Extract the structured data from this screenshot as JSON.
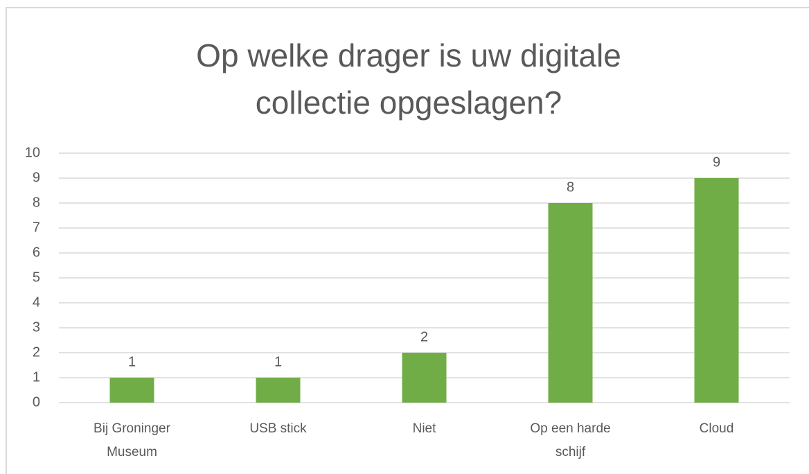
{
  "chart_data": {
    "type": "bar",
    "title": "Op welke drager is uw digitale collectie opgeslagen?",
    "categories": [
      "Bij Groninger Museum",
      "USB stick",
      "Niet",
      "Op een harde schijf",
      "Cloud"
    ],
    "values": [
      1,
      1,
      2,
      8,
      9
    ],
    "color": "#70ad47",
    "ylim": [
      0,
      10
    ],
    "yticks": [
      0,
      1,
      2,
      3,
      4,
      5,
      6,
      7,
      8,
      9,
      10
    ],
    "grid": true
  }
}
